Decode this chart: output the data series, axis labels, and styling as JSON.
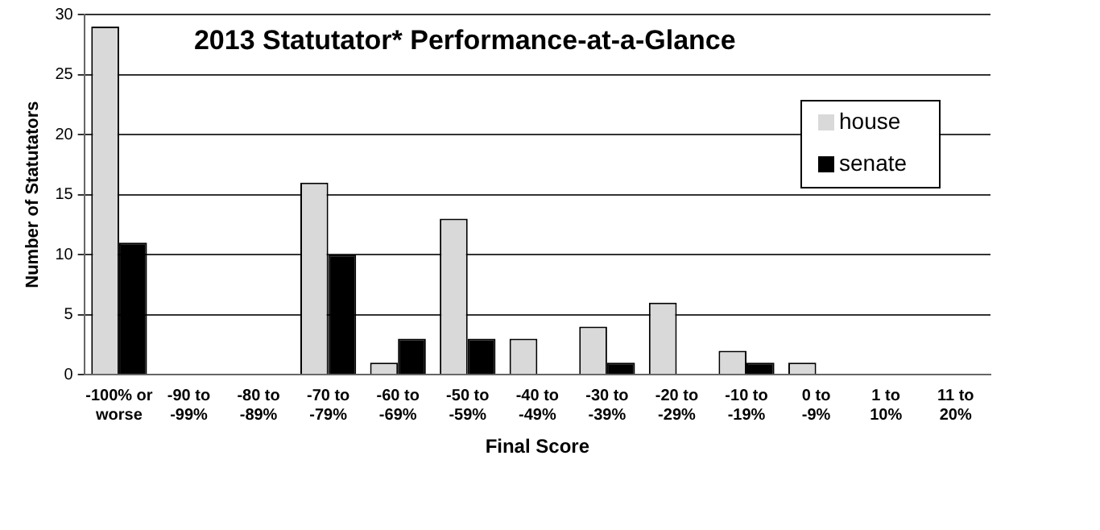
{
  "chart_data": {
    "type": "bar",
    "title": "2013 Statutator* Performance-at-a-Glance",
    "xlabel": "Final Score",
    "ylabel": "Number of Statutators",
    "categories": [
      "-100% or\nworse",
      "-90 to\n-99%",
      "-80 to\n-89%",
      "-70 to\n-79%",
      "-60 to\n-69%",
      "-50 to\n-59%",
      "-40 to\n-49%",
      "-30 to\n-39%",
      "-20 to\n-29%",
      "-10 to\n-19%",
      "0 to\n-9%",
      "1 to\n10%",
      "11 to\n20%"
    ],
    "series": [
      {
        "name": "house",
        "color": "#d9d9d9",
        "values": [
          29,
          0,
          0,
          16,
          1,
          13,
          3,
          4,
          6,
          2,
          1,
          0,
          0
        ]
      },
      {
        "name": "senate",
        "color": "#000000",
        "values": [
          11,
          0,
          0,
          10,
          3,
          3,
          0,
          1,
          0,
          1,
          0,
          0,
          0
        ]
      }
    ],
    "ylim": [
      0,
      30
    ],
    "yticks": [
      0,
      5,
      10,
      15,
      20,
      25,
      30
    ],
    "grid": "y",
    "legend": "top right"
  }
}
